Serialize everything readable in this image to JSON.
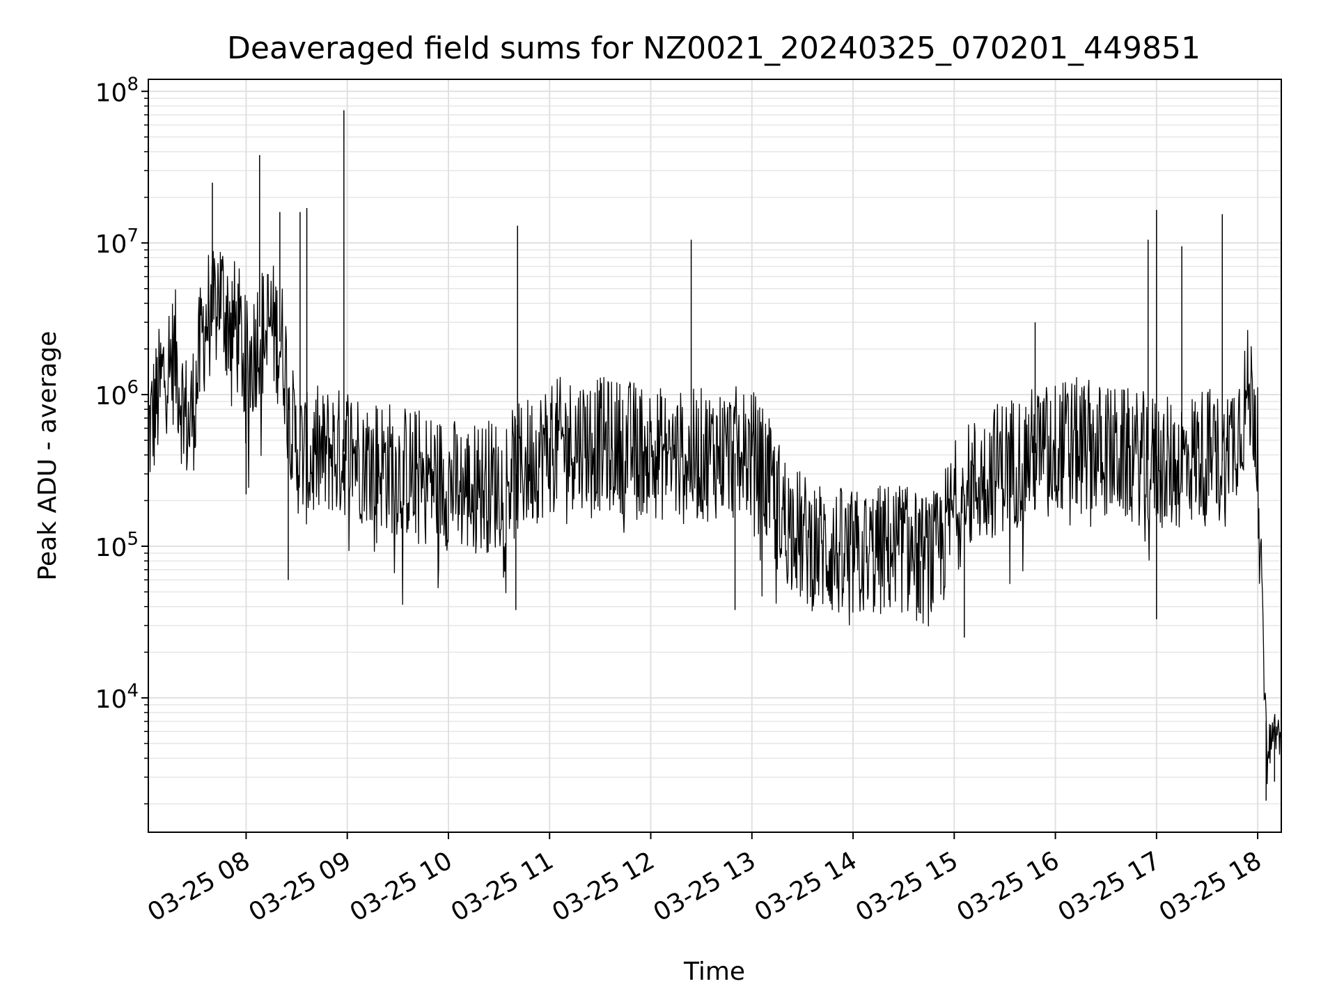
{
  "chart_data": {
    "type": "line",
    "title": "Deaveraged field sums for NZ0021_20240325_070201_449851",
    "xlabel": "Time",
    "ylabel": "Peak ADU - average",
    "yscale": "log",
    "ylim": [
      1300,
      120000000
    ],
    "xlim": [
      "03-25 07:02",
      "03-25 18:14"
    ],
    "grid": true,
    "x_ticks": [
      {
        "time": "03-25 08:00",
        "label": "03-25 08"
      },
      {
        "time": "03-25 09:00",
        "label": "03-25 09"
      },
      {
        "time": "03-25 10:00",
        "label": "03-25 10"
      },
      {
        "time": "03-25 11:00",
        "label": "03-25 11"
      },
      {
        "time": "03-25 12:00",
        "label": "03-25 12"
      },
      {
        "time": "03-25 13:00",
        "label": "03-25 13"
      },
      {
        "time": "03-25 14:00",
        "label": "03-25 14"
      },
      {
        "time": "03-25 15:00",
        "label": "03-25 15"
      },
      {
        "time": "03-25 16:00",
        "label": "03-25 16"
      },
      {
        "time": "03-25 17:00",
        "label": "03-25 17"
      },
      {
        "time": "03-25 18:00",
        "label": "03-25 18"
      }
    ],
    "y_ticks": [
      {
        "value": 10000,
        "base": "10",
        "exp": "4"
      },
      {
        "value": 100000,
        "base": "10",
        "exp": "5"
      },
      {
        "value": 1000000,
        "base": "10",
        "exp": "6"
      },
      {
        "value": 10000000,
        "base": "10",
        "exp": "7"
      },
      {
        "value": 100000000,
        "base": "10",
        "exp": "8"
      }
    ],
    "series": [
      {
        "color": "#000000",
        "x": [
          "03-25 07:02",
          "03-25 07:06",
          "03-25 07:12",
          "03-25 07:18",
          "03-25 07:22",
          "03-25 07:26",
          "03-25 07:30",
          "03-25 07:34",
          "03-25 07:38",
          "03-25 07:40",
          "03-25 07:44",
          "03-25 07:48",
          "03-25 07:52",
          "03-25 07:56",
          "03-25 07:58",
          "03-25 08:00",
          "03-25 08:04",
          "03-25 08:08",
          "03-25 08:10",
          "03-25 08:14",
          "03-25 08:18",
          "03-25 08:22",
          "03-25 08:26",
          "03-25 08:28",
          "03-25 08:30",
          "03-25 08:34",
          "03-25 08:38",
          "03-25 08:42",
          "03-25 08:46",
          "03-25 08:50",
          "03-25 08:54",
          "03-25 08:58",
          "03-25 09:00",
          "03-25 09:10",
          "03-25 09:20",
          "03-25 09:30",
          "03-25 09:40",
          "03-25 09:50",
          "03-25 10:00",
          "03-25 10:10",
          "03-25 10:20",
          "03-25 10:30",
          "03-25 10:40",
          "03-25 10:50",
          "03-25 11:00",
          "03-25 11:10",
          "03-25 11:20",
          "03-25 11:30",
          "03-25 11:40",
          "03-25 11:50",
          "03-25 12:00",
          "03-25 12:10",
          "03-25 12:20",
          "03-25 12:30",
          "03-25 12:40",
          "03-25 12:50",
          "03-25 13:00",
          "03-25 13:10",
          "03-25 13:20",
          "03-25 13:30",
          "03-25 13:40",
          "03-25 13:50",
          "03-25 14:00",
          "03-25 14:10",
          "03-25 14:20",
          "03-25 14:30",
          "03-25 14:40",
          "03-25 14:50",
          "03-25 15:00",
          "03-25 15:10",
          "03-25 15:20",
          "03-25 15:30",
          "03-25 15:40",
          "03-25 15:50",
          "03-25 16:00",
          "03-25 16:10",
          "03-25 16:20",
          "03-25 16:30",
          "03-25 16:40",
          "03-25 16:50",
          "03-25 17:00",
          "03-25 17:10",
          "03-25 17:20",
          "03-25 17:30",
          "03-25 17:40",
          "03-25 17:50",
          "03-25 17:54",
          "03-25 17:58",
          "03-25 18:00",
          "03-25 18:02",
          "03-25 18:04",
          "03-25 18:06",
          "03-25 18:08",
          "03-25 18:10",
          "03-25 18:12",
          "03-25 18:14"
        ],
        "y": [
          550000,
          800000,
          1500000,
          1800000,
          900000,
          600000,
          1000000,
          2500000,
          3500000,
          3000000,
          5000000,
          3500000,
          3000000,
          2500000,
          2000000,
          1500000,
          1800000,
          2800000,
          2500000,
          3000000,
          2500000,
          2000000,
          900000,
          500000,
          450000,
          400000,
          350000,
          420000,
          380000,
          450000,
          400000,
          420000,
          450000,
          380000,
          350000,
          320000,
          300000,
          280000,
          260000,
          240000,
          250000,
          260000,
          300000,
          380000,
          450000,
          480000,
          500000,
          470000,
          460000,
          450000,
          420000,
          400000,
          380000,
          400000,
          420000,
          410000,
          400000,
          250000,
          150000,
          110000,
          100000,
          90000,
          85000,
          90000,
          95000,
          100000,
          80000,
          85000,
          180000,
          250000,
          300000,
          350000,
          380000,
          420000,
          450000,
          470000,
          450000,
          420000,
          400000,
          380000,
          360000,
          340000,
          380000,
          420000,
          360000,
          700000,
          1000000,
          900000,
          400000,
          100000,
          10000,
          5000,
          5500,
          6500,
          6000,
          5000
        ],
        "spikes": [
          {
            "x": "03-25 07:40",
            "y": 25000000
          },
          {
            "x": "03-25 08:08",
            "y": 38000000
          },
          {
            "x": "03-25 08:20",
            "y": 16000000
          },
          {
            "x": "03-25 08:32",
            "y": 16000000
          },
          {
            "x": "03-25 08:36",
            "y": 17000000
          },
          {
            "x": "03-25 08:58",
            "y": 75000000
          },
          {
            "x": "03-25 10:41",
            "y": 13000000
          },
          {
            "x": "03-25 12:24",
            "y": 10500000
          },
          {
            "x": "03-25 15:48",
            "y": 3000000
          },
          {
            "x": "03-25 16:55",
            "y": 10500000
          },
          {
            "x": "03-25 17:00",
            "y": 16500000
          },
          {
            "x": "03-25 17:15",
            "y": 9500000
          },
          {
            "x": "03-25 17:39",
            "y": 15500000
          }
        ],
        "dips": [
          {
            "x": "03-25 08:00",
            "y": 220000
          },
          {
            "x": "03-25 08:25",
            "y": 60000
          },
          {
            "x": "03-25 10:40",
            "y": 38000
          },
          {
            "x": "03-25 12:50",
            "y": 38000
          },
          {
            "x": "03-25 14:40",
            "y": 36000
          },
          {
            "x": "03-25 15:06",
            "y": 25000
          },
          {
            "x": "03-25 17:00",
            "y": 33000
          },
          {
            "x": "03-25 18:05",
            "y": 2100
          },
          {
            "x": "03-25 18:10",
            "y": 2800
          }
        ]
      }
    ]
  }
}
